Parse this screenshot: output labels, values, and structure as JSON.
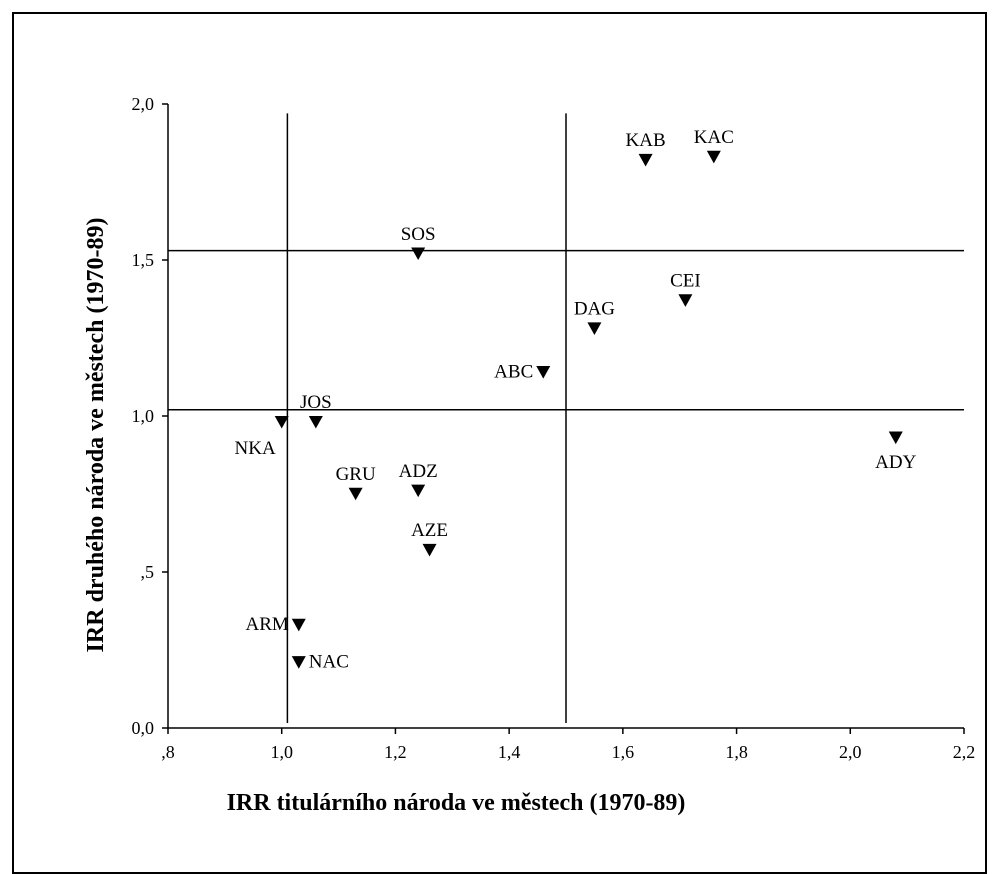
{
  "chart_data": {
    "type": "scatter",
    "title": "",
    "xlabel": "IRR titulárního národa ve městech (1970-89)",
    "ylabel": "IRR druhého národa ve městech (1970-89)",
    "xlim": [
      0.8,
      2.2
    ],
    "ylim": [
      0.0,
      2.0
    ],
    "x_ticks": [
      0.8,
      1.0,
      1.2,
      1.4,
      1.6,
      1.8,
      2.0,
      2.2
    ],
    "x_tick_labels": [
      ",8",
      "1,0",
      "1,2",
      "1,4",
      "1,6",
      "1,8",
      "2,0",
      "2,2"
    ],
    "y_ticks": [
      0.0,
      0.5,
      1.0,
      1.5,
      2.0
    ],
    "y_tick_labels": [
      "0,0",
      ",5",
      "1,0",
      "1,5",
      "2,0"
    ],
    "reference_lines": {
      "vertical": [
        1.01,
        1.5
      ],
      "horizontal": [
        1.02,
        1.53
      ]
    },
    "marker": "triangle-down",
    "color": "#000000",
    "grid": false,
    "legend": "none",
    "points": [
      {
        "label": "KAB",
        "x": 1.64,
        "y": 1.82,
        "label_pos": "above"
      },
      {
        "label": "KAC",
        "x": 1.76,
        "y": 1.83,
        "label_pos": "above"
      },
      {
        "label": "SOS",
        "x": 1.24,
        "y": 1.52,
        "label_pos": "above"
      },
      {
        "label": "CEI",
        "x": 1.71,
        "y": 1.37,
        "label_pos": "above"
      },
      {
        "label": "DAG",
        "x": 1.55,
        "y": 1.28,
        "label_pos": "above"
      },
      {
        "label": "ABC",
        "x": 1.46,
        "y": 1.14,
        "label_pos": "left"
      },
      {
        "label": "JOS",
        "x": 1.06,
        "y": 0.98,
        "label_pos": "above"
      },
      {
        "label": "NKA",
        "x": 1.0,
        "y": 0.98,
        "label_pos": "below-left"
      },
      {
        "label": "ADY",
        "x": 2.08,
        "y": 0.93,
        "label_pos": "below"
      },
      {
        "label": "GRU",
        "x": 1.13,
        "y": 0.75,
        "label_pos": "above"
      },
      {
        "label": "ADZ",
        "x": 1.24,
        "y": 0.76,
        "label_pos": "above"
      },
      {
        "label": "AZE",
        "x": 1.26,
        "y": 0.57,
        "label_pos": "above"
      },
      {
        "label": "ARM",
        "x": 1.03,
        "y": 0.33,
        "label_pos": "left"
      },
      {
        "label": "NAC",
        "x": 1.03,
        "y": 0.21,
        "label_pos": "right"
      }
    ]
  }
}
